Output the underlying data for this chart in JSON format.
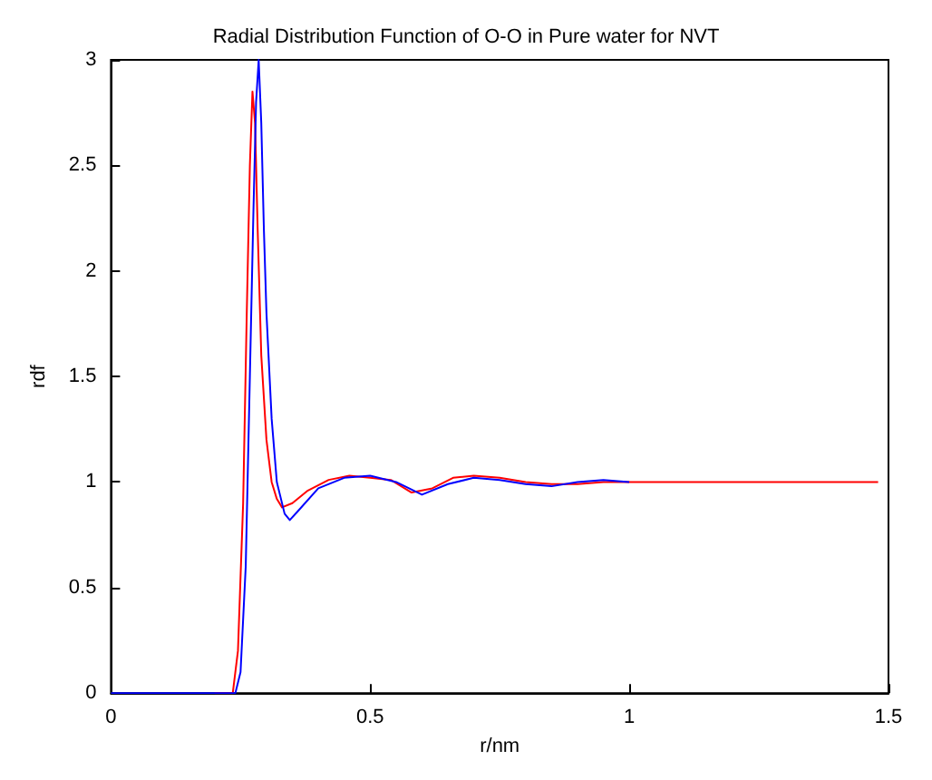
{
  "chart_data": {
    "type": "line",
    "title": "Radial Distribution Function of O-O in Pure water for NVT",
    "xlabel": "r/nm",
    "ylabel": "rdf",
    "xlim": [
      0,
      1.5
    ],
    "ylim": [
      0,
      3
    ],
    "xticks": [
      0,
      0.5,
      1,
      1.5
    ],
    "yticks": [
      0,
      0.5,
      1,
      1.5,
      2,
      2.5,
      3
    ],
    "grid": false,
    "marker": "none",
    "line_style": "solid",
    "series": [
      {
        "color": "#ff0000",
        "x": [
          0.2,
          0.235,
          0.245,
          0.255,
          0.262,
          0.268,
          0.273,
          0.278,
          0.283,
          0.29,
          0.3,
          0.31,
          0.32,
          0.33,
          0.35,
          0.38,
          0.42,
          0.46,
          0.5,
          0.54,
          0.58,
          0.62,
          0.66,
          0.7,
          0.75,
          0.8,
          0.85,
          0.9,
          0.95,
          1.0,
          1.1,
          1.2,
          1.3,
          1.48
        ],
        "values": [
          0,
          0,
          0.2,
          0.9,
          1.8,
          2.5,
          2.85,
          2.7,
          2.2,
          1.6,
          1.2,
          1.0,
          0.92,
          0.88,
          0.9,
          0.96,
          1.01,
          1.03,
          1.02,
          1.01,
          0.95,
          0.97,
          1.02,
          1.03,
          1.02,
          1.0,
          0.99,
          0.99,
          1.0,
          1.0,
          1.0,
          1.0,
          1.0,
          1.0
        ]
      },
      {
        "color": "#0000ff",
        "x": [
          0,
          0.1,
          0.2,
          0.24,
          0.25,
          0.26,
          0.268,
          0.275,
          0.28,
          0.285,
          0.29,
          0.295,
          0.3,
          0.31,
          0.32,
          0.335,
          0.345,
          0.36,
          0.4,
          0.45,
          0.5,
          0.55,
          0.6,
          0.65,
          0.7,
          0.75,
          0.8,
          0.85,
          0.9,
          0.95,
          1.0
        ],
        "values": [
          0,
          0,
          0,
          0,
          0.1,
          0.6,
          1.5,
          2.3,
          2.8,
          3.0,
          2.7,
          2.2,
          1.8,
          1.3,
          1.0,
          0.85,
          0.82,
          0.86,
          0.97,
          1.02,
          1.03,
          1.0,
          0.94,
          0.99,
          1.02,
          1.01,
          0.99,
          0.98,
          1.0,
          1.01,
          1.0
        ]
      }
    ]
  }
}
